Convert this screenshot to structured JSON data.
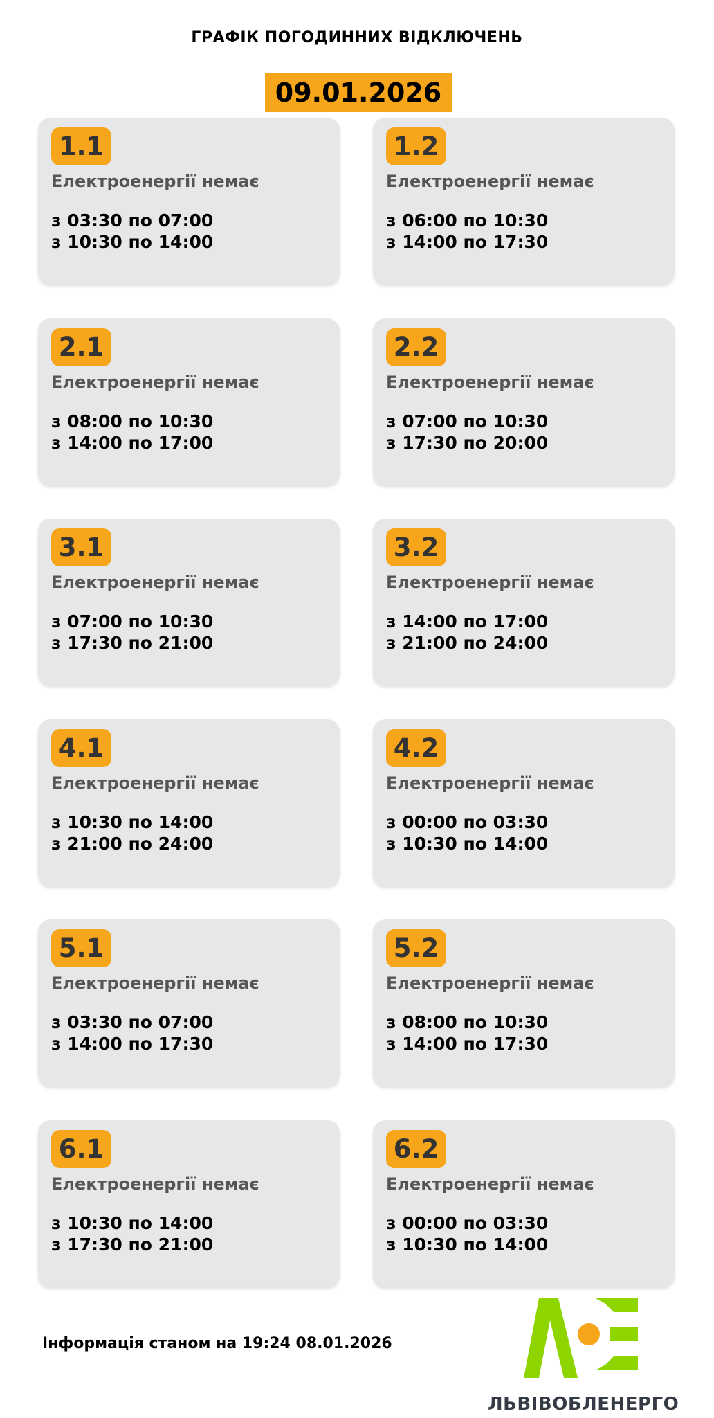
{
  "header": {
    "title": "ГРАФІК ПОГОДИННИХ ВІДКЛЮЧЕНЬ",
    "date": "09.01.2026"
  },
  "colors": {
    "accent": "#f7a51b",
    "card": "#e6e7e9",
    "logo_green": "#8ed500"
  },
  "groups": [
    {
      "id": "1.1",
      "status": "Електроенергії немає",
      "times": [
        "з 03:30 по 07:00",
        "з 10:30 по 14:00"
      ]
    },
    {
      "id": "1.2",
      "status": "Електроенергії немає",
      "times": [
        "з 06:00 по 10:30",
        "з 14:00 по 17:30"
      ]
    },
    {
      "id": "2.1",
      "status": "Електроенергії немає",
      "times": [
        "з 08:00 по 10:30",
        "з 14:00 по 17:00"
      ]
    },
    {
      "id": "2.2",
      "status": "Електроенергії немає",
      "times": [
        "з 07:00 по 10:30",
        "з 17:30 по 20:00"
      ]
    },
    {
      "id": "3.1",
      "status": "Електроенергії немає",
      "times": [
        "з 07:00 по 10:30",
        "з 17:30 по 21:00"
      ]
    },
    {
      "id": "3.2",
      "status": "Електроенергії немає",
      "times": [
        "з 14:00 по 17:00",
        "з 21:00 по 24:00"
      ]
    },
    {
      "id": "4.1",
      "status": "Електроенергії немає",
      "times": [
        "з 10:30 по 14:00",
        "з 21:00 по 24:00"
      ]
    },
    {
      "id": "4.2",
      "status": "Електроенергії немає",
      "times": [
        "з 00:00 по 03:30",
        "з 10:30 по 14:00"
      ]
    },
    {
      "id": "5.1",
      "status": "Електроенергії немає",
      "times": [
        "з 03:30 по 07:00",
        "з 14:00 по 17:30"
      ]
    },
    {
      "id": "5.2",
      "status": "Електроенергії немає",
      "times": [
        "з 08:00 по 10:30",
        "з 14:00 по 17:30"
      ]
    },
    {
      "id": "6.1",
      "status": "Електроенергії немає",
      "times": [
        "з 10:30 по 14:00",
        "з 17:30 по 21:00"
      ]
    },
    {
      "id": "6.2",
      "status": "Електроенергії немає",
      "times": [
        "з 00:00 по 03:30",
        "з 10:30 по 14:00"
      ]
    }
  ],
  "footer": {
    "info": "Інформація станом на 19:24 08.01.2026",
    "brand": "ЛЬВІВОБЛЕНЕРГО"
  }
}
